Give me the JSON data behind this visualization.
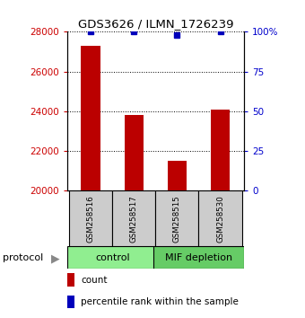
{
  "title": "GDS3626 / ILMN_1726239",
  "samples": [
    "GSM258516",
    "GSM258517",
    "GSM258515",
    "GSM258530"
  ],
  "counts": [
    27300,
    23800,
    21500,
    24100
  ],
  "percentile_ranks": [
    100,
    100,
    98,
    100
  ],
  "groups": [
    {
      "name": "control",
      "color": "#90EE90",
      "indices": [
        0,
        1
      ]
    },
    {
      "name": "MIF depletion",
      "color": "#66CC66",
      "indices": [
        2,
        3
      ]
    }
  ],
  "bar_color": "#BB0000",
  "dot_color": "#0000BB",
  "ylim_left": [
    20000,
    28000
  ],
  "ylim_right": [
    0,
    100
  ],
  "yticks_left": [
    20000,
    22000,
    24000,
    26000,
    28000
  ],
  "yticks_right": [
    0,
    25,
    50,
    75,
    100
  ],
  "left_tick_color": "#CC0000",
  "right_tick_color": "#0000CC",
  "sample_box_color": "#CCCCCC",
  "bar_width": 0.45,
  "background_color": "#FFFFFF",
  "legend_count_color": "#BB0000",
  "legend_pct_color": "#0000BB"
}
